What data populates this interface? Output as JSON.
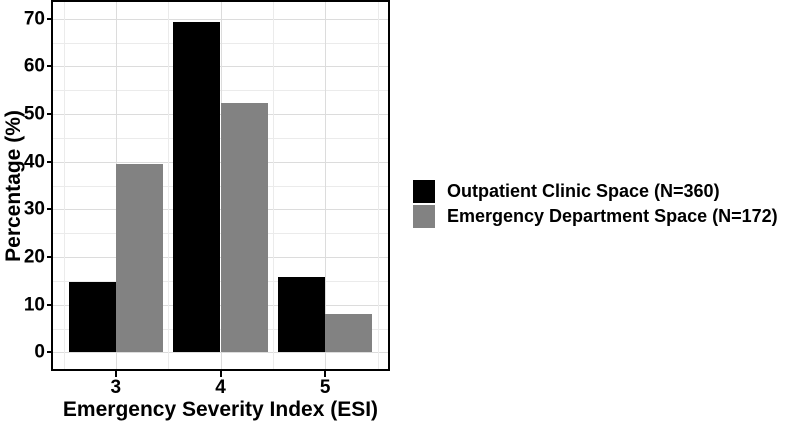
{
  "figure": {
    "background": "#ffffff",
    "text_color": "#000000",
    "panel_border_color": "#000000"
  },
  "chart_data": {
    "type": "bar",
    "bar_mode": "grouped",
    "title": "",
    "xlabel": "Emergency Severity Index (ESI)",
    "ylabel": "Percentage (%)",
    "categories": [
      "3",
      "4",
      "5"
    ],
    "series": [
      {
        "name": "Outpatient Clinic Space (N=360)",
        "color": "#000000",
        "values": [
          14.7,
          69.4,
          15.8
        ]
      },
      {
        "name": "Emergency Department Space (N=172)",
        "color": "#828282",
        "values": [
          39.5,
          52.3,
          8.1
        ]
      }
    ],
    "ylim": [
      0,
      70
    ],
    "y_tick_step": 10,
    "y_minor_step": 5,
    "y_tick_labels": [
      "0",
      "10",
      "20",
      "30",
      "40",
      "50",
      "60",
      "70"
    ],
    "grid": true,
    "gridline_major_color": "#dcdcdc",
    "gridline_minor_color": "#ebebeb",
    "legend_position": "right"
  }
}
